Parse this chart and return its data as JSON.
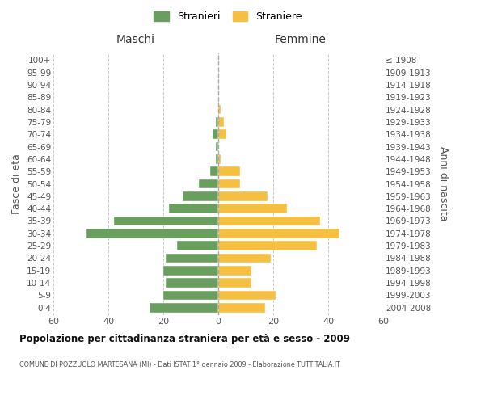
{
  "age_groups": [
    "0-4",
    "5-9",
    "10-14",
    "15-19",
    "20-24",
    "25-29",
    "30-34",
    "35-39",
    "40-44",
    "45-49",
    "50-54",
    "55-59",
    "60-64",
    "65-69",
    "70-74",
    "75-79",
    "80-84",
    "85-89",
    "90-94",
    "95-99",
    "100+"
  ],
  "birth_years": [
    "2004-2008",
    "1999-2003",
    "1994-1998",
    "1989-1993",
    "1984-1988",
    "1979-1983",
    "1974-1978",
    "1969-1973",
    "1964-1968",
    "1959-1963",
    "1954-1958",
    "1949-1953",
    "1944-1948",
    "1939-1943",
    "1934-1938",
    "1929-1933",
    "1924-1928",
    "1919-1923",
    "1914-1918",
    "1909-1913",
    "≤ 1908"
  ],
  "maschi": [
    25,
    20,
    19,
    20,
    19,
    15,
    48,
    38,
    18,
    13,
    7,
    3,
    1,
    1,
    2,
    1,
    0,
    0,
    0,
    0,
    0
  ],
  "femmine": [
    17,
    21,
    12,
    12,
    19,
    36,
    44,
    37,
    25,
    18,
    8,
    8,
    1,
    0,
    3,
    2,
    1,
    0,
    0,
    0,
    0
  ],
  "color_maschi": "#6a9e5e",
  "color_femmine": "#f5bf42",
  "title": "Popolazione per cittadinanza straniera per età e sesso - 2009",
  "subtitle": "COMUNE DI POZZUOLO MARTESANA (MI) - Dati ISTAT 1° gennaio 2009 - Elaborazione TUTTITALIA.IT",
  "xlabel_left": "Maschi",
  "xlabel_right": "Femmine",
  "ylabel_left": "Fasce di età",
  "ylabel_right": "Anni di nascita",
  "legend_maschi": "Stranieri",
  "legend_femmine": "Straniere",
  "xlim": 60,
  "background_color": "#ffffff",
  "grid_color": "#cccccc"
}
